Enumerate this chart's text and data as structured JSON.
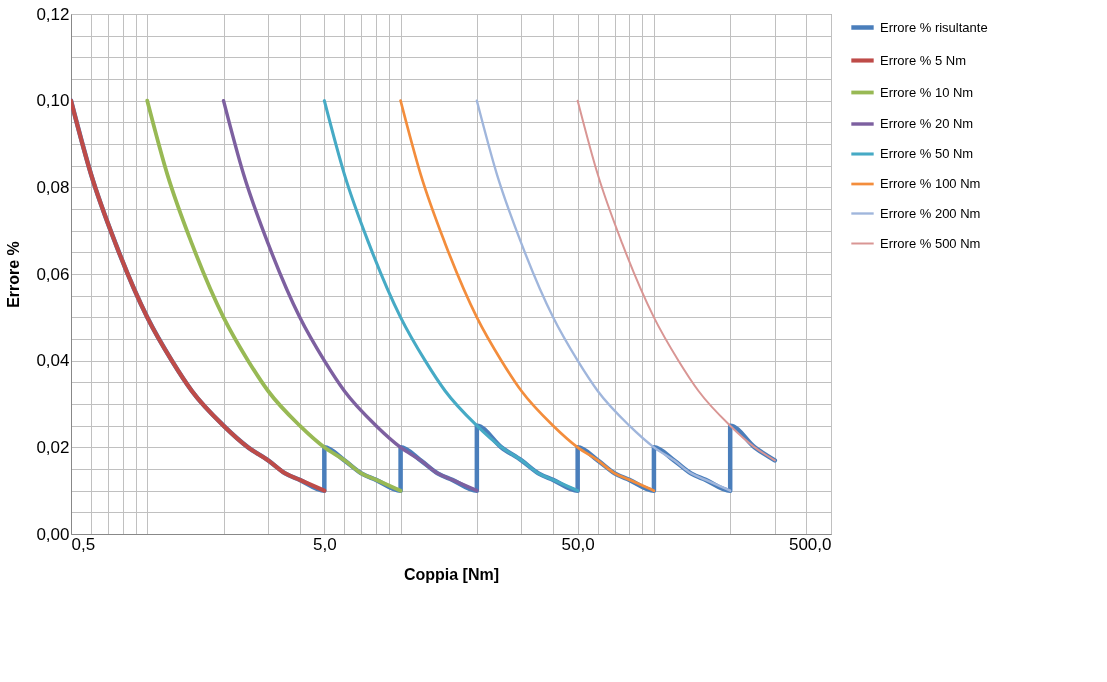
{
  "chart_data": {
    "type": "line",
    "xlabel": "Coppia [Nm]",
    "ylabel": "Errore %",
    "log": "x",
    "grid": true,
    "legend": "right",
    "marker": "none",
    "line_style": "solid",
    "xlim": [
      0.5,
      500
    ],
    "ylim": [
      0,
      0.12
    ],
    "xticks": [
      {
        "value": 0.5,
        "label": "0,5"
      },
      {
        "value": 0.6,
        "label": null
      },
      {
        "value": 0.7,
        "label": null
      },
      {
        "value": 0.8,
        "label": null
      },
      {
        "value": 0.9,
        "label": null
      },
      {
        "value": 1,
        "label": null
      },
      {
        "value": 2,
        "label": null
      },
      {
        "value": 3,
        "label": null
      },
      {
        "value": 4,
        "label": null
      },
      {
        "value": 5,
        "label": "5,0"
      },
      {
        "value": 6,
        "label": null
      },
      {
        "value": 7,
        "label": null
      },
      {
        "value": 8,
        "label": null
      },
      {
        "value": 9,
        "label": null
      },
      {
        "value": 10,
        "label": null
      },
      {
        "value": 20,
        "label": null
      },
      {
        "value": 30,
        "label": null
      },
      {
        "value": 40,
        "label": null
      },
      {
        "value": 50,
        "label": "50,0"
      },
      {
        "value": 60,
        "label": null
      },
      {
        "value": 70,
        "label": null
      },
      {
        "value": 80,
        "label": null
      },
      {
        "value": 90,
        "label": null
      },
      {
        "value": 100,
        "label": null
      },
      {
        "value": 200,
        "label": null
      },
      {
        "value": 300,
        "label": null
      },
      {
        "value": 400,
        "label": null
      },
      {
        "value": 500,
        "label": "500,0"
      }
    ],
    "yticks": [
      {
        "value": 0,
        "label": "0,00"
      },
      {
        "value": 0.005,
        "label": null
      },
      {
        "value": 0.01,
        "label": null
      },
      {
        "value": 0.015,
        "label": null
      },
      {
        "value": 0.02,
        "label": "0,02"
      },
      {
        "value": 0.025,
        "label": null
      },
      {
        "value": 0.03,
        "label": null
      },
      {
        "value": 0.035,
        "label": null
      },
      {
        "value": 0.04,
        "label": "0,04"
      },
      {
        "value": 0.045,
        "label": null
      },
      {
        "value": 0.05,
        "label": null
      },
      {
        "value": 0.055,
        "label": null
      },
      {
        "value": 0.06,
        "label": "0,06"
      },
      {
        "value": 0.065,
        "label": null
      },
      {
        "value": 0.07,
        "label": null
      },
      {
        "value": 0.075,
        "label": null
      },
      {
        "value": 0.08,
        "label": "0,08"
      },
      {
        "value": 0.085,
        "label": null
      },
      {
        "value": 0.09,
        "label": null
      },
      {
        "value": 0.095,
        "label": null
      },
      {
        "value": 0.1,
        "label": "0,10"
      },
      {
        "value": 0.105,
        "label": null
      },
      {
        "value": 0.11,
        "label": null
      },
      {
        "value": 0.115,
        "label": null
      },
      {
        "value": 0.12,
        "label": "0,12"
      }
    ],
    "series": [
      {
        "name": "Errore % risultante",
        "color": "#4a7ebb",
        "x": [
          0.5,
          0.6,
          0.75,
          1,
          1.25,
          1.5,
          2,
          2.5,
          3,
          3.5,
          4,
          5,
          5,
          6,
          7,
          8,
          10,
          10,
          12,
          14,
          16,
          20,
          20,
          25,
          30,
          35,
          40,
          50,
          50,
          60,
          70,
          80,
          100,
          100,
          120,
          140,
          160,
          200,
          200,
          250,
          300
        ],
        "values": [
          0.1,
          0.083,
          0.067,
          0.05,
          0.04,
          0.033,
          0.025,
          0.02,
          0.017,
          0.014,
          0.0125,
          0.01,
          0.02,
          0.017,
          0.014,
          0.0125,
          0.01,
          0.02,
          0.017,
          0.014,
          0.0125,
          0.01,
          0.025,
          0.02,
          0.017,
          0.014,
          0.0125,
          0.01,
          0.02,
          0.017,
          0.014,
          0.0125,
          0.01,
          0.02,
          0.017,
          0.014,
          0.0125,
          0.01,
          0.025,
          0.02,
          0.017
        ]
      },
      {
        "name": "Errore % 5 Nm",
        "color": "#be4b48",
        "x": [
          0.5,
          0.6,
          0.75,
          1,
          1.25,
          1.5,
          2,
          2.5,
          3,
          3.5,
          4,
          5
        ],
        "values": [
          0.1,
          0.083,
          0.067,
          0.05,
          0.04,
          0.033,
          0.025,
          0.02,
          0.017,
          0.014,
          0.0125,
          0.01
        ]
      },
      {
        "name": "Errore % 10 Nm",
        "color": "#98b954",
        "x": [
          1,
          1.2,
          1.5,
          2,
          2.5,
          3,
          4,
          5,
          6,
          7,
          8,
          10
        ],
        "values": [
          0.1,
          0.083,
          0.067,
          0.05,
          0.04,
          0.033,
          0.025,
          0.02,
          0.017,
          0.014,
          0.0125,
          0.01
        ]
      },
      {
        "name": "Errore % 20 Nm",
        "color": "#7d60a0",
        "x": [
          2,
          2.4,
          3,
          4,
          5,
          6,
          8,
          10,
          12,
          14,
          16,
          20
        ],
        "values": [
          0.1,
          0.083,
          0.067,
          0.05,
          0.04,
          0.033,
          0.025,
          0.02,
          0.017,
          0.014,
          0.0125,
          0.01
        ]
      },
      {
        "name": "Errore % 50 Nm",
        "color": "#46aac5",
        "x": [
          5,
          6,
          7.5,
          10,
          12.5,
          15,
          20,
          25,
          30,
          35,
          40,
          50
        ],
        "values": [
          0.1,
          0.083,
          0.067,
          0.05,
          0.04,
          0.033,
          0.025,
          0.02,
          0.017,
          0.014,
          0.0125,
          0.01
        ]
      },
      {
        "name": "Errore % 100 Nm",
        "color": "#f38d3c",
        "x": [
          10,
          12,
          15,
          20,
          25,
          30,
          40,
          50,
          60,
          70,
          80,
          100
        ],
        "values": [
          0.1,
          0.083,
          0.067,
          0.05,
          0.04,
          0.033,
          0.025,
          0.02,
          0.017,
          0.014,
          0.0125,
          0.01
        ]
      },
      {
        "name": "Errore % 200 Nm",
        "color": "#a0b6dc",
        "x": [
          20,
          24,
          30,
          40,
          50,
          60,
          80,
          100,
          120,
          140,
          160,
          200
        ],
        "values": [
          0.1,
          0.083,
          0.067,
          0.05,
          0.04,
          0.033,
          0.025,
          0.02,
          0.017,
          0.014,
          0.0125,
          0.01
        ]
      },
      {
        "name": "Errore % 500 Nm",
        "color": "#d99694",
        "x": [
          50,
          60,
          75,
          100,
          125,
          150,
          200,
          250,
          300
        ],
        "values": [
          0.1,
          0.083,
          0.067,
          0.05,
          0.04,
          0.033,
          0.025,
          0.02,
          0.017
        ]
      }
    ]
  }
}
